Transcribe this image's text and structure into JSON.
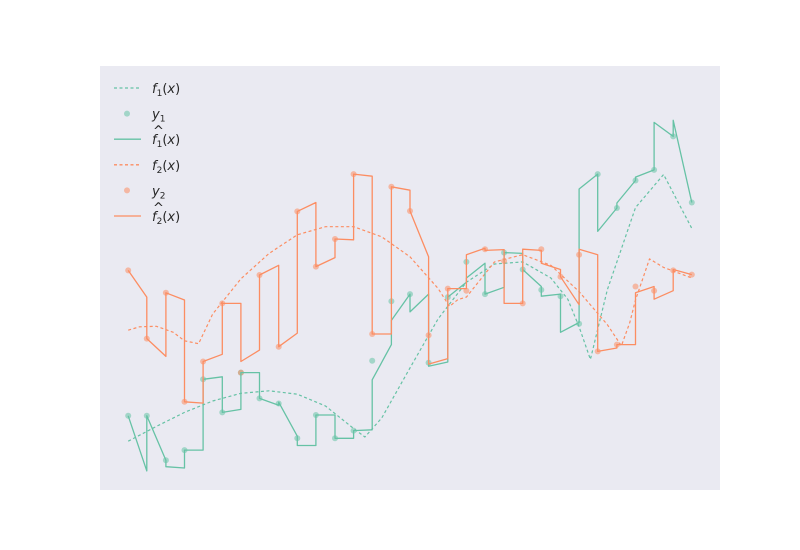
{
  "chart_data": {
    "type": "line",
    "title": "",
    "xlabel": "",
    "ylabel": "",
    "xlim": [
      -0.5,
      10.5
    ],
    "ylim": [
      0,
      10
    ],
    "grid": false,
    "background": "#eaeaf2",
    "legend": {
      "placement": "top-left",
      "entries": [
        {
          "key": "f1",
          "main": "f",
          "sub": "1",
          "hat": false,
          "tail": "(x)"
        },
        {
          "key": "y1",
          "main": "y",
          "sub": "1",
          "hat": false,
          "tail": ""
        },
        {
          "key": "fhat1",
          "main": "f",
          "sub": "1",
          "hat": true,
          "tail": "(x)"
        },
        {
          "key": "f2",
          "main": "f",
          "sub": "2",
          "hat": false,
          "tail": "(x)"
        },
        {
          "key": "y2",
          "main": "y",
          "sub": "2",
          "hat": false,
          "tail": ""
        },
        {
          "key": "fhat2",
          "main": "f",
          "sub": "2",
          "hat": true,
          "tail": "(x)"
        }
      ]
    },
    "series": [
      {
        "key": "f1",
        "kind": "dashed",
        "color": "#66c2a5",
        "points": [
          [
            0,
            1.15
          ],
          [
            0.5,
            1.5
          ],
          [
            1,
            1.83
          ],
          [
            1.5,
            2.1
          ],
          [
            2,
            2.28
          ],
          [
            2.5,
            2.34
          ],
          [
            3,
            2.26
          ],
          [
            3.5,
            1.98
          ],
          [
            4,
            1.45
          ],
          [
            4.2,
            1.25
          ],
          [
            4.5,
            1.7
          ],
          [
            5,
            2.88
          ],
          [
            5.5,
            4.04
          ],
          [
            6,
            4.9
          ],
          [
            6.5,
            5.33
          ],
          [
            7,
            5.38
          ],
          [
            7.5,
            5.0
          ],
          [
            7.8,
            4.5
          ],
          [
            8,
            3.85
          ],
          [
            8.2,
            3.08
          ],
          [
            8.5,
            4.72
          ],
          [
            9,
            6.66
          ],
          [
            9.5,
            7.44
          ],
          [
            10,
            6.17
          ]
        ]
      },
      {
        "key": "y1",
        "kind": "scatter",
        "color": "#66c2a5",
        "points": [
          [
            0,
            1.75
          ],
          [
            0.33,
            1.75
          ],
          [
            0.67,
            0.7
          ],
          [
            1,
            0.94
          ],
          [
            1.33,
            2.61
          ],
          [
            1.67,
            1.83
          ],
          [
            2,
            2.77
          ],
          [
            2.33,
            2.16
          ],
          [
            2.67,
            2.04
          ],
          [
            3,
            1.22
          ],
          [
            3.33,
            1.77
          ],
          [
            3.67,
            1.22
          ],
          [
            4,
            1.4
          ],
          [
            4.33,
            3.05
          ],
          [
            4.67,
            4.45
          ],
          [
            5,
            4.62
          ],
          [
            5.33,
            3.0
          ],
          [
            5.67,
            4.55
          ],
          [
            6,
            5.38
          ],
          [
            6.33,
            4.62
          ],
          [
            6.67,
            5.6
          ],
          [
            7,
            5.2
          ],
          [
            7.33,
            4.72
          ],
          [
            7.67,
            4.57
          ],
          [
            8,
            3.92
          ],
          [
            8.33,
            7.45
          ],
          [
            8.67,
            6.65
          ],
          [
            9,
            7.3
          ],
          [
            9.33,
            7.55
          ],
          [
            9.67,
            8.34
          ],
          [
            10,
            6.78
          ]
        ]
      },
      {
        "key": "fhat1",
        "kind": "step",
        "color": "#66c2a5",
        "points": [
          [
            0,
            1.75
          ],
          [
            0.33,
            0.45
          ],
          [
            0.33,
            1.75
          ],
          [
            0.67,
            0.7
          ],
          [
            0.67,
            0.55
          ],
          [
            1,
            0.52
          ],
          [
            1,
            0.94
          ],
          [
            1.33,
            0.94
          ],
          [
            1.33,
            2.61
          ],
          [
            1.67,
            2.67
          ],
          [
            1.67,
            1.83
          ],
          [
            2,
            1.9
          ],
          [
            2,
            2.77
          ],
          [
            2.33,
            2.77
          ],
          [
            2.33,
            2.16
          ],
          [
            2.67,
            2.0
          ],
          [
            2.67,
            2.07
          ],
          [
            3,
            1.27
          ],
          [
            3,
            1.05
          ],
          [
            3.33,
            1.05
          ],
          [
            3.33,
            1.77
          ],
          [
            3.67,
            1.77
          ],
          [
            3.67,
            1.22
          ],
          [
            4,
            1.22
          ],
          [
            4,
            1.4
          ],
          [
            4.33,
            1.42
          ],
          [
            4.33,
            2.6
          ],
          [
            4.67,
            3.43
          ],
          [
            4.67,
            4.0
          ],
          [
            5,
            4.62
          ],
          [
            5,
            4.2
          ],
          [
            5.33,
            4.62
          ],
          [
            5.33,
            2.92
          ],
          [
            5.67,
            3.02
          ],
          [
            5.67,
            4.55
          ],
          [
            6,
            4.9
          ],
          [
            6,
            5.0
          ],
          [
            6.33,
            5.35
          ],
          [
            6.33,
            4.62
          ],
          [
            6.67,
            4.78
          ],
          [
            6.67,
            5.6
          ],
          [
            7,
            5.58
          ],
          [
            7,
            5.2
          ],
          [
            7.33,
            4.8
          ],
          [
            7.33,
            4.57
          ],
          [
            7.67,
            4.62
          ],
          [
            7.67,
            3.72
          ],
          [
            8,
            3.95
          ],
          [
            8,
            7.1
          ],
          [
            8.33,
            7.45
          ],
          [
            8.33,
            6.1
          ],
          [
            8.67,
            6.65
          ],
          [
            8.67,
            6.77
          ],
          [
            9,
            7.3
          ],
          [
            9,
            7.38
          ],
          [
            9.33,
            7.55
          ],
          [
            9.33,
            8.67
          ],
          [
            9.67,
            8.34
          ],
          [
            9.67,
            8.72
          ],
          [
            10,
            6.78
          ]
        ]
      },
      {
        "key": "f2",
        "kind": "dashed",
        "color": "#fc8d62",
        "points": [
          [
            0,
            3.77
          ],
          [
            0.2,
            3.85
          ],
          [
            0.5,
            3.86
          ],
          [
            0.8,
            3.72
          ],
          [
            1,
            3.52
          ],
          [
            1.25,
            3.45
          ],
          [
            1.5,
            4.15
          ],
          [
            2,
            4.98
          ],
          [
            2.5,
            5.58
          ],
          [
            3,
            6.02
          ],
          [
            3.5,
            6.21
          ],
          [
            4,
            6.21
          ],
          [
            4.5,
            5.97
          ],
          [
            5,
            5.5
          ],
          [
            5.5,
            4.75
          ],
          [
            5.7,
            4.33
          ],
          [
            5.85,
            4.49
          ],
          [
            6,
            4.55
          ],
          [
            6.5,
            5.38
          ],
          [
            7,
            5.55
          ],
          [
            7.5,
            5.3
          ],
          [
            8,
            4.68
          ],
          [
            8.5,
            3.9
          ],
          [
            8.75,
            3.4
          ],
          [
            8.9,
            3.95
          ],
          [
            9,
            4.48
          ],
          [
            9.25,
            5.45
          ],
          [
            9.5,
            5.25
          ],
          [
            10,
            5.0
          ]
        ]
      },
      {
        "key": "y2",
        "kind": "scatter",
        "color": "#fc8d62",
        "points": [
          [
            0,
            5.18
          ],
          [
            0.33,
            3.57
          ],
          [
            0.67,
            4.65
          ],
          [
            1,
            2.08
          ],
          [
            1.33,
            3.03
          ],
          [
            1.67,
            4.4
          ],
          [
            2,
            2.77
          ],
          [
            2.33,
            5.07
          ],
          [
            2.67,
            3.38
          ],
          [
            3,
            6.57
          ],
          [
            3.33,
            5.27
          ],
          [
            3.67,
            5.92
          ],
          [
            4,
            7.45
          ],
          [
            4.33,
            3.68
          ],
          [
            4.67,
            7.15
          ],
          [
            5,
            6.58
          ],
          [
            5.33,
            3.65
          ],
          [
            5.67,
            4.75
          ],
          [
            6,
            4.7
          ],
          [
            6.33,
            5.68
          ],
          [
            6.67,
            5.4
          ],
          [
            7,
            4.4
          ],
          [
            7.33,
            5.68
          ],
          [
            7.67,
            5.03
          ],
          [
            8,
            5.55
          ],
          [
            8.33,
            3.27
          ],
          [
            8.67,
            3.43
          ],
          [
            9,
            4.8
          ],
          [
            9.33,
            4.7
          ],
          [
            9.67,
            5.18
          ],
          [
            10,
            5.08
          ]
        ]
      },
      {
        "key": "fhat2",
        "kind": "step",
        "color": "#fc8d62",
        "points": [
          [
            0,
            5.18
          ],
          [
            0.33,
            4.55
          ],
          [
            0.33,
            3.57
          ],
          [
            0.67,
            3.15
          ],
          [
            0.67,
            4.65
          ],
          [
            1,
            4.48
          ],
          [
            1,
            2.08
          ],
          [
            1.33,
            2.05
          ],
          [
            1.33,
            3.03
          ],
          [
            1.67,
            3.2
          ],
          [
            1.67,
            4.4
          ],
          [
            2,
            4.4
          ],
          [
            2,
            3.03
          ],
          [
            2.33,
            3.3
          ],
          [
            2.33,
            5.07
          ],
          [
            2.67,
            5.3
          ],
          [
            2.67,
            3.38
          ],
          [
            3,
            3.7
          ],
          [
            3,
            6.57
          ],
          [
            3.33,
            6.78
          ],
          [
            3.33,
            5.27
          ],
          [
            3.67,
            5.48
          ],
          [
            3.67,
            5.92
          ],
          [
            4,
            5.9
          ],
          [
            4,
            7.45
          ],
          [
            4.33,
            7.4
          ],
          [
            4.33,
            3.68
          ],
          [
            4.67,
            3.68
          ],
          [
            4.67,
            7.15
          ],
          [
            5,
            7.07
          ],
          [
            5,
            6.58
          ],
          [
            5.33,
            5.5
          ],
          [
            5.33,
            2.97
          ],
          [
            5.67,
            3.1
          ],
          [
            5.67,
            4.75
          ],
          [
            6,
            4.75
          ],
          [
            6,
            5.55
          ],
          [
            6.33,
            5.7
          ],
          [
            6.33,
            5.65
          ],
          [
            6.67,
            5.67
          ],
          [
            6.67,
            4.4
          ],
          [
            7,
            4.4
          ],
          [
            7,
            5.68
          ],
          [
            7.33,
            5.65
          ],
          [
            7.33,
            5.35
          ],
          [
            7.67,
            5.2
          ],
          [
            7.67,
            5.03
          ],
          [
            8,
            4.37
          ],
          [
            8,
            5.68
          ],
          [
            8.33,
            5.55
          ],
          [
            8.33,
            3.27
          ],
          [
            8.67,
            3.35
          ],
          [
            8.67,
            3.43
          ],
          [
            9,
            3.43
          ],
          [
            9,
            4.65
          ],
          [
            9.33,
            4.8
          ],
          [
            9.33,
            4.5
          ],
          [
            9.67,
            4.7
          ],
          [
            9.67,
            5.2
          ],
          [
            10,
            5.08
          ]
        ]
      }
    ]
  }
}
